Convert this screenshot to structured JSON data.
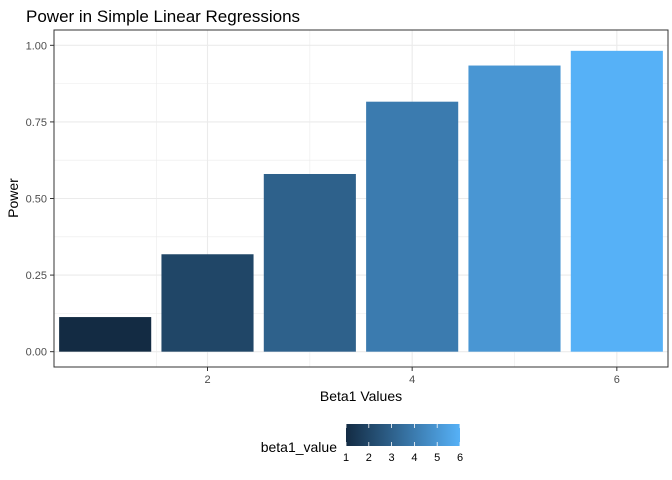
{
  "chart_data": {
    "type": "bar",
    "title": "Power in Simple Linear Regressions",
    "xlabel": "Beta1 Values",
    "ylabel": "Power",
    "x": [
      1,
      2,
      3,
      4,
      5,
      6
    ],
    "values": [
      0.113,
      0.318,
      0.58,
      0.816,
      0.934,
      0.982
    ],
    "xlim": [
      0.5,
      6.5
    ],
    "ylim": [
      -0.05,
      1.05
    ],
    "x_ticks": [
      2,
      4,
      6
    ],
    "x_tick_labels": [
      "2",
      "4",
      "6"
    ],
    "y_ticks": [
      0,
      0.25,
      0.5,
      0.75,
      1.0
    ],
    "y_tick_labels": [
      "0.00",
      "0.25",
      "0.50",
      "0.75",
      "1.00"
    ],
    "grid": true,
    "legend": {
      "title": "beta1_value",
      "placement": "bottom",
      "type": "colorbar",
      "range": [
        1,
        6
      ],
      "ticks": [
        1,
        2,
        3,
        4,
        5,
        6
      ],
      "tick_labels": [
        "1",
        "2",
        "3",
        "4",
        "5",
        "6"
      ],
      "low_color": "#132B43",
      "high_color": "#56B1F7"
    }
  }
}
